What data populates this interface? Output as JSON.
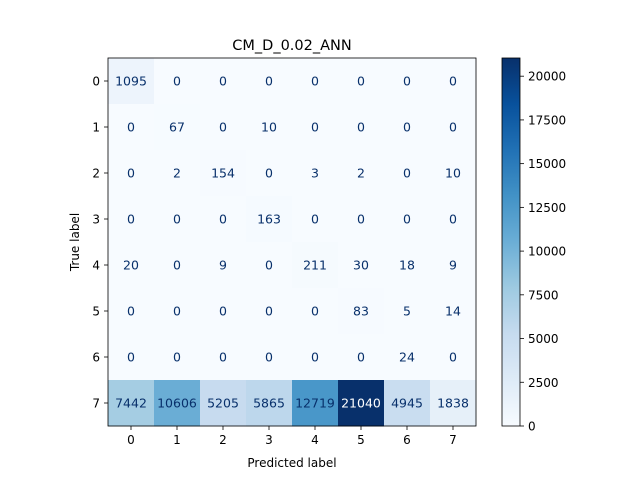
{
  "chart_data": {
    "type": "heatmap",
    "title": "CM_D_0.02_ANN",
    "xlabel": "Predicted label",
    "ylabel": "True label",
    "x_categories": [
      "0",
      "1",
      "2",
      "3",
      "4",
      "5",
      "6",
      "7"
    ],
    "y_categories": [
      "0",
      "1",
      "2",
      "3",
      "4",
      "5",
      "6",
      "7"
    ],
    "matrix": [
      [
        1095,
        0,
        0,
        0,
        0,
        0,
        0,
        0
      ],
      [
        0,
        67,
        0,
        10,
        0,
        0,
        0,
        0
      ],
      [
        0,
        2,
        154,
        0,
        3,
        2,
        0,
        10
      ],
      [
        0,
        0,
        0,
        163,
        0,
        0,
        0,
        0
      ],
      [
        20,
        0,
        9,
        0,
        211,
        30,
        18,
        9
      ],
      [
        0,
        0,
        0,
        0,
        0,
        83,
        5,
        14
      ],
      [
        0,
        0,
        0,
        0,
        0,
        0,
        24,
        0
      ],
      [
        7442,
        10606,
        5205,
        5865,
        12719,
        21040,
        4945,
        1838
      ]
    ],
    "colormap": "Blues",
    "colorbar": {
      "range": [
        0,
        21040
      ],
      "ticks": [
        "0",
        "2500",
        "5000",
        "7500",
        "10000",
        "12500",
        "15000",
        "17500",
        "20000"
      ]
    },
    "grid": false
  }
}
